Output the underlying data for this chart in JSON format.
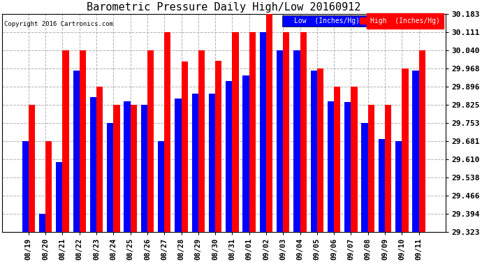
{
  "title": "Barometric Pressure Daily High/Low 20160912",
  "copyright": "Copyright 2016 Cartronics.com",
  "dates": [
    "08/19",
    "08/20",
    "08/21",
    "08/22",
    "08/23",
    "08/24",
    "08/25",
    "08/26",
    "08/27",
    "08/28",
    "08/29",
    "08/30",
    "08/31",
    "09/01",
    "09/02",
    "09/03",
    "09/04",
    "09/05",
    "09/06",
    "09/07",
    "09/08",
    "09/09",
    "09/10",
    "09/11"
  ],
  "low": [
    29.681,
    29.394,
    29.6,
    29.96,
    29.855,
    29.753,
    29.84,
    29.825,
    29.681,
    29.85,
    29.87,
    29.87,
    29.92,
    29.94,
    30.111,
    30.04,
    30.04,
    29.96,
    29.84,
    29.835,
    29.753,
    29.69,
    29.681,
    29.96
  ],
  "high": [
    29.825,
    29.681,
    30.04,
    30.04,
    29.896,
    29.825,
    29.825,
    30.04,
    30.111,
    29.996,
    30.04,
    30.0,
    30.111,
    30.111,
    30.183,
    30.111,
    30.111,
    29.968,
    29.896,
    29.896,
    29.825,
    29.825,
    29.968,
    30.04
  ],
  "ymin": 29.323,
  "ymax": 30.183,
  "yticks": [
    29.323,
    29.394,
    29.466,
    29.538,
    29.61,
    29.681,
    29.753,
    29.825,
    29.896,
    29.968,
    30.04,
    30.111,
    30.183
  ],
  "low_color": "#0000ff",
  "high_color": "#ff0000",
  "bg_color": "#ffffff",
  "grid_color": "#b0b0b0",
  "title_fontsize": 11,
  "bar_width": 0.38
}
